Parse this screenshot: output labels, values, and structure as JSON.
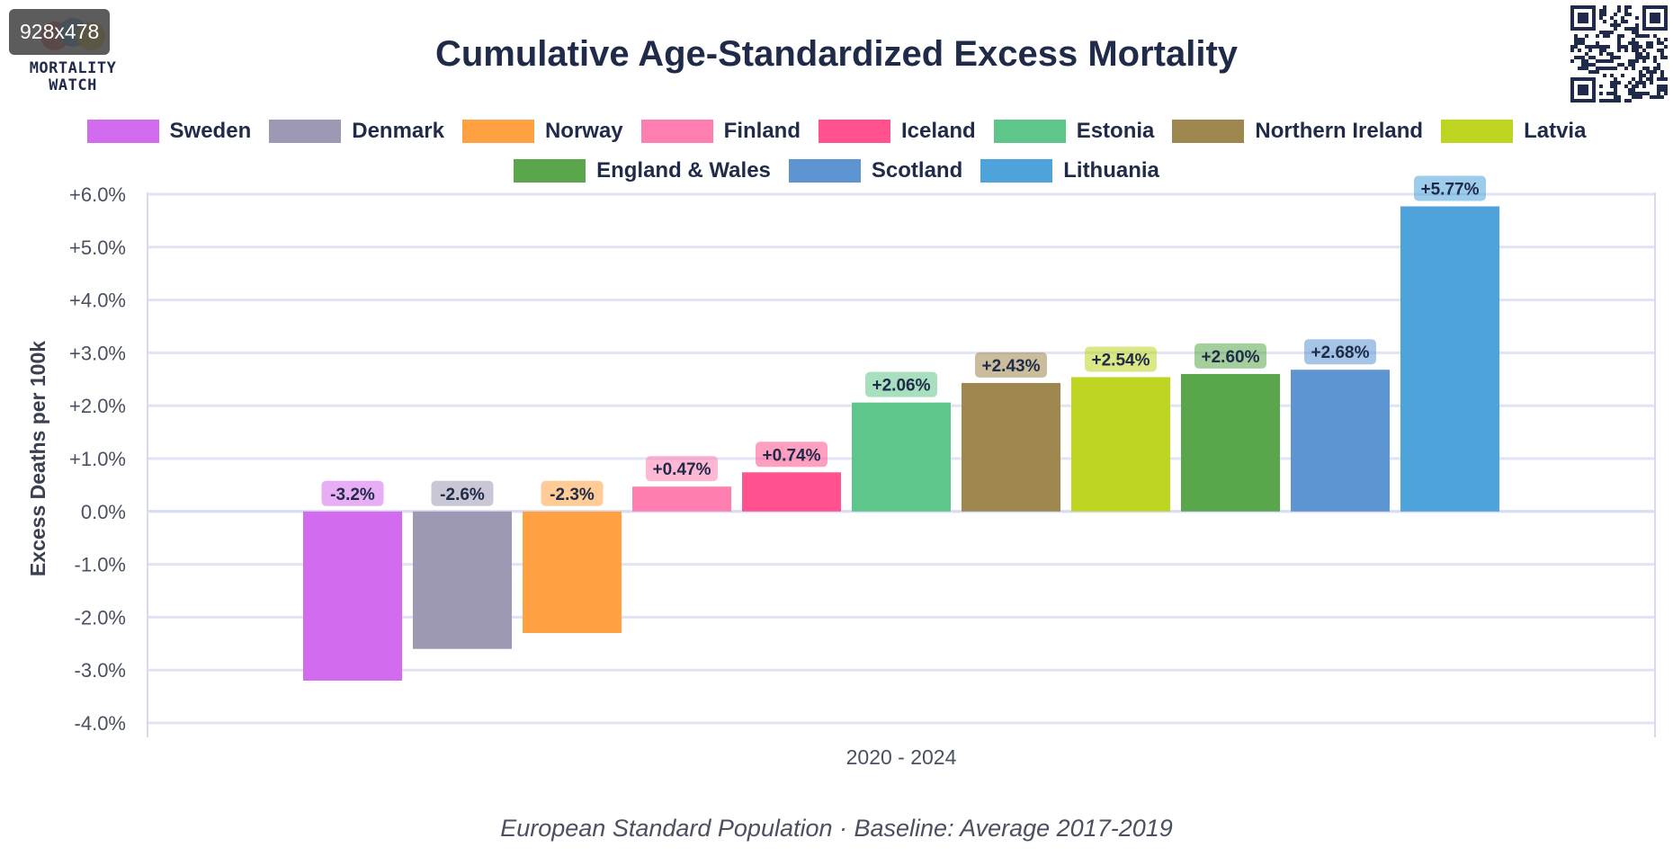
{
  "badge": "928x478",
  "logo": {
    "line1": "MORTALITY",
    "line2": "WATCH"
  },
  "footer_caption": "European Standard Population · Baseline: Average 2017-2019",
  "chart_data": {
    "type": "bar",
    "title": "Cumulative Age-Standardized Excess Mortality",
    "ylabel": "Excess Deaths per 100k",
    "xlabel": "",
    "categories": [
      "2020 - 2024"
    ],
    "ylim": [
      -4.0,
      6.0
    ],
    "yticks": [
      "+6.0%",
      "+5.0%",
      "+4.0%",
      "+3.0%",
      "+2.0%",
      "+1.0%",
      "0.0%",
      "-1.0%",
      "-2.0%",
      "-3.0%",
      "-4.0%"
    ],
    "grid": true,
    "legend_position": "top",
    "series": [
      {
        "name": "Sweden",
        "values": [
          -3.2
        ],
        "label": "-3.2%",
        "color": "#d36bee"
      },
      {
        "name": "Denmark",
        "values": [
          -2.6
        ],
        "label": "-2.6%",
        "color": "#9d99b4"
      },
      {
        "name": "Norway",
        "values": [
          -2.3
        ],
        "label": "-2.3%",
        "color": "#ffa142"
      },
      {
        "name": "Finland",
        "values": [
          0.47
        ],
        "label": "+0.47%",
        "color": "#ff7eb0"
      },
      {
        "name": "Iceland",
        "values": [
          0.74
        ],
        "label": "+0.74%",
        "color": "#ff528e"
      },
      {
        "name": "Estonia",
        "values": [
          2.06
        ],
        "label": "+2.06%",
        "color": "#5ec58b"
      },
      {
        "name": "Northern Ireland",
        "values": [
          2.43
        ],
        "label": "+2.43%",
        "color": "#9e874f"
      },
      {
        "name": "Latvia",
        "values": [
          2.54
        ],
        "label": "+2.54%",
        "color": "#bdd520"
      },
      {
        "name": "England & Wales",
        "values": [
          2.6
        ],
        "label": "+2.60%",
        "color": "#5aa74b"
      },
      {
        "name": "Scotland",
        "values": [
          2.68
        ],
        "label": "+2.68%",
        "color": "#5c95d2"
      },
      {
        "name": "Lithuania",
        "values": [
          5.77
        ],
        "label": "+5.77%",
        "color": "#4fa3db"
      }
    ]
  }
}
